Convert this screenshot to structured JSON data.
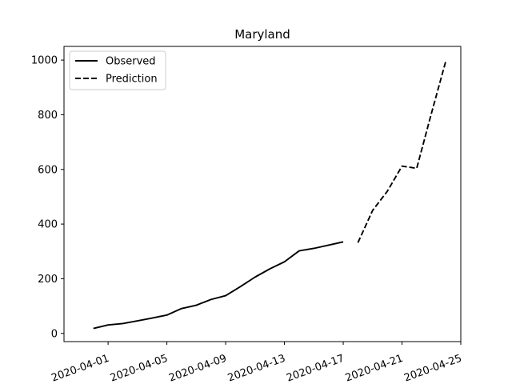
{
  "chart_data": {
    "type": "line",
    "title": "Maryland",
    "xlabel": "",
    "ylabel": "",
    "x_type": "date",
    "xlim": [
      "2020-03-29",
      "2020-04-25"
    ],
    "ylim": [
      -30,
      1050
    ],
    "xticks": [
      "2020-04-01",
      "2020-04-05",
      "2020-04-09",
      "2020-04-13",
      "2020-04-17",
      "2020-04-21",
      "2020-04-25"
    ],
    "yticks": [
      0,
      200,
      400,
      600,
      800,
      1000
    ],
    "grid": false,
    "legend_position": "top-left",
    "series": [
      {
        "name": "Observed",
        "style": "solid",
        "color": "#000000",
        "points": [
          {
            "x": "2020-03-31",
            "y": 18
          },
          {
            "x": "2020-04-01",
            "y": 31
          },
          {
            "x": "2020-04-02",
            "y": 36
          },
          {
            "x": "2020-04-03",
            "y": 46
          },
          {
            "x": "2020-04-04",
            "y": 56
          },
          {
            "x": "2020-04-05",
            "y": 67
          },
          {
            "x": "2020-04-06",
            "y": 91
          },
          {
            "x": "2020-04-07",
            "y": 103
          },
          {
            "x": "2020-04-08",
            "y": 124
          },
          {
            "x": "2020-04-09",
            "y": 138
          },
          {
            "x": "2020-04-10",
            "y": 171
          },
          {
            "x": "2020-04-11",
            "y": 206
          },
          {
            "x": "2020-04-12",
            "y": 236
          },
          {
            "x": "2020-04-13",
            "y": 262
          },
          {
            "x": "2020-04-14",
            "y": 302
          },
          {
            "x": "2020-04-15",
            "y": 311
          },
          {
            "x": "2020-04-16",
            "y": 323
          },
          {
            "x": "2020-04-17",
            "y": 335
          }
        ]
      },
      {
        "name": "Prediction",
        "style": "dashed",
        "color": "#000000",
        "points": [
          {
            "x": "2020-04-18",
            "y": 332
          },
          {
            "x": "2020-04-19",
            "y": 450
          },
          {
            "x": "2020-04-20",
            "y": 520
          },
          {
            "x": "2020-04-21",
            "y": 612
          },
          {
            "x": "2020-04-22",
            "y": 604
          },
          {
            "x": "2020-04-23",
            "y": 805
          },
          {
            "x": "2020-04-24",
            "y": 1000
          }
        ]
      }
    ]
  }
}
